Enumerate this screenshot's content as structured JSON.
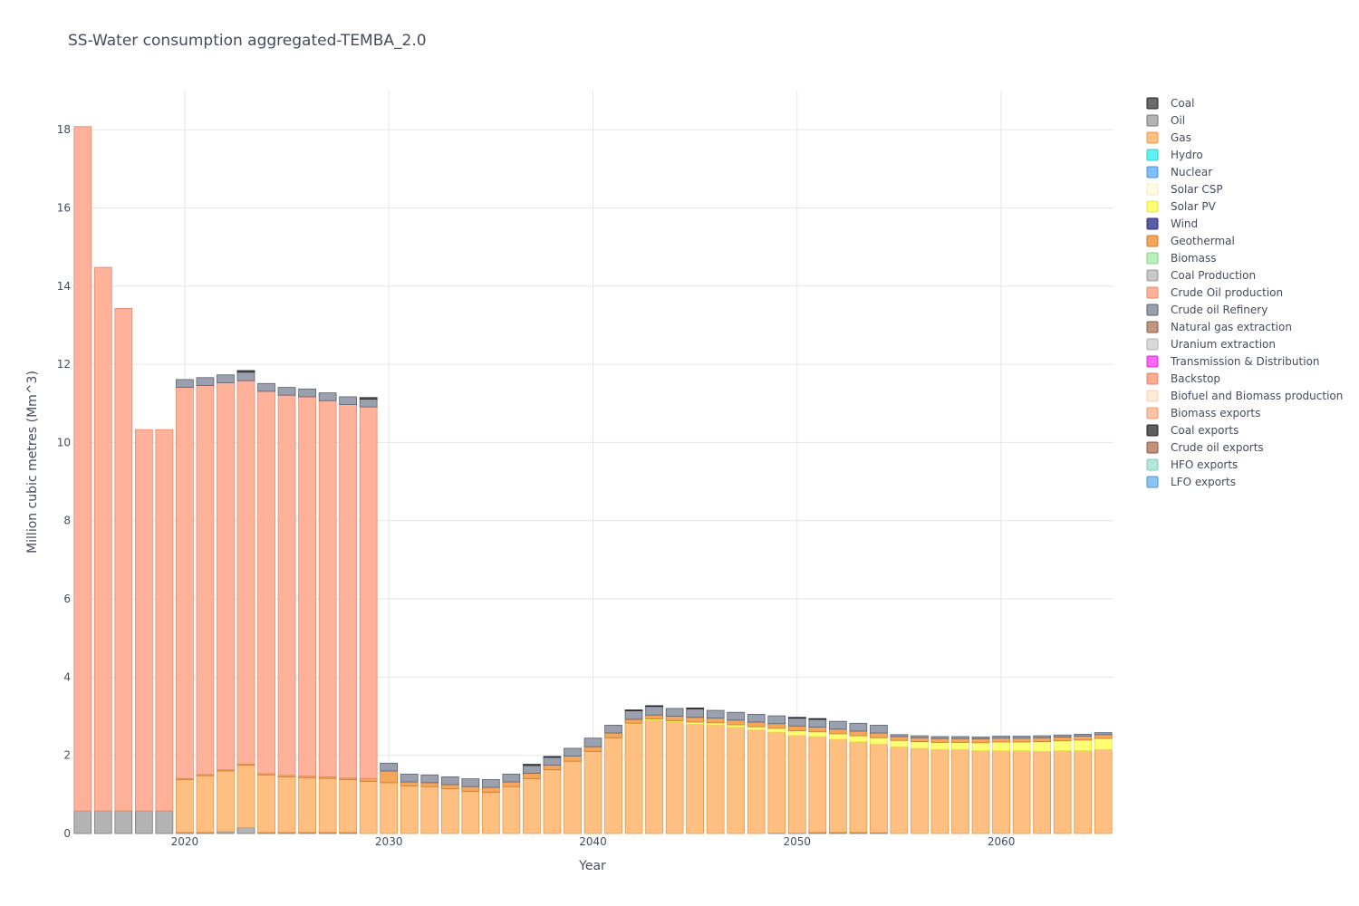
{
  "chart_data": {
    "type": "bar",
    "stacked": true,
    "title": "SS-Water consumption aggregated-TEMBA_2.0",
    "xlabel": "Year",
    "ylabel": "Million cubic metres (Mm^3)",
    "xlim": [
      2014.5,
      2065.5
    ],
    "ylim": [
      0,
      19
    ],
    "x_ticks": [
      2020,
      2030,
      2040,
      2050,
      2060
    ],
    "y_ticks": [
      0,
      2,
      4,
      6,
      8,
      10,
      12,
      14,
      16,
      18
    ],
    "grid": true,
    "legend_position": "right",
    "legend": [
      {
        "name": "Coal",
        "color": "#6b6b6b",
        "edge": "#222222"
      },
      {
        "name": "Oil",
        "color": "#b3b3b3",
        "edge": "#777777"
      },
      {
        "name": "Gas",
        "color": "#ffbf80",
        "edge": "#e8964a"
      },
      {
        "name": "Hydro",
        "color": "#5cf2f2",
        "edge": "#33cccc"
      },
      {
        "name": "Nuclear",
        "color": "#80bfff",
        "edge": "#4d94db"
      },
      {
        "name": "Solar CSP",
        "color": "#fdfbe3",
        "edge": "#f0ecc0"
      },
      {
        "name": "Solar PV",
        "color": "#ffff73",
        "edge": "#e6e64d"
      },
      {
        "name": "Wind",
        "color": "#5b5ba8",
        "edge": "#2e2e80"
      },
      {
        "name": "Geothermal",
        "color": "#f5a65a",
        "edge": "#cc7a2e"
      },
      {
        "name": "Biomass",
        "color": "#b8f2b8",
        "edge": "#8ccc8c"
      },
      {
        "name": "Coal Production",
        "color": "#c7c7c7",
        "edge": "#999999"
      },
      {
        "name": "Crude Oil production",
        "color": "#ffb299",
        "edge": "#e68a6b"
      },
      {
        "name": "Crude oil Refinery",
        "color": "#9aa0ad",
        "edge": "#5c6170"
      },
      {
        "name": "Natural gas extraction",
        "color": "#c49580",
        "edge": "#8c5a45"
      },
      {
        "name": "Uranium extraction",
        "color": "#d9d9d9",
        "edge": "#b0b0b0"
      },
      {
        "name": "Transmission & Distribution",
        "color": "#ff66ff",
        "edge": "#cc33cc"
      },
      {
        "name": "Backstop",
        "color": "#ffab91",
        "edge": "#e6806b"
      },
      {
        "name": "Biofuel and Biomass production",
        "color": "#fdebd6",
        "edge": "#f0d0b0"
      },
      {
        "name": "Biomass exports",
        "color": "#ffc2a3",
        "edge": "#eb9a75"
      },
      {
        "name": "Coal exports",
        "color": "#5e5e5e",
        "edge": "#222222"
      },
      {
        "name": "Crude oil exports",
        "color": "#c4907a",
        "edge": "#8c5a45"
      },
      {
        "name": "HFO exports",
        "color": "#b3e6d9",
        "edge": "#80ccb8"
      },
      {
        "name": "LFO exports",
        "color": "#8cc4f2",
        "edge": "#4d94db"
      }
    ],
    "x": [
      2015,
      2016,
      2017,
      2018,
      2019,
      2020,
      2021,
      2022,
      2023,
      2024,
      2025,
      2026,
      2027,
      2028,
      2029,
      2030,
      2031,
      2032,
      2033,
      2034,
      2035,
      2036,
      2037,
      2038,
      2039,
      2040,
      2041,
      2042,
      2043,
      2044,
      2045,
      2046,
      2047,
      2048,
      2049,
      2050,
      2051,
      2052,
      2053,
      2054,
      2055,
      2056,
      2057,
      2058,
      2059,
      2060,
      2061,
      2062,
      2063,
      2064,
      2065
    ],
    "series": [
      {
        "name": "Oil",
        "values": [
          0.58,
          0.58,
          0.58,
          0.58,
          0.58,
          0.03,
          0.03,
          0.05,
          0.15,
          0.03,
          0.03,
          0.03,
          0.03,
          0.03,
          0,
          0,
          0,
          0,
          0,
          0,
          0,
          0,
          0,
          0,
          0,
          0,
          0,
          0,
          0,
          0,
          0,
          0,
          0,
          0,
          0.01,
          0.01,
          0.03,
          0.03,
          0.03,
          0.02,
          0,
          0,
          0,
          0,
          0,
          0,
          0,
          0,
          0,
          0,
          0
        ]
      },
      {
        "name": "Gas",
        "values": [
          0,
          0,
          0,
          0,
          0,
          1.35,
          1.45,
          1.55,
          1.6,
          1.47,
          1.42,
          1.4,
          1.38,
          1.35,
          1.33,
          1.3,
          1.22,
          1.2,
          1.15,
          1.08,
          1.05,
          1.2,
          1.4,
          1.63,
          1.85,
          2.1,
          2.45,
          2.8,
          2.9,
          2.85,
          2.8,
          2.78,
          2.72,
          2.65,
          2.58,
          2.5,
          2.45,
          2.38,
          2.32,
          2.27,
          2.22,
          2.18,
          2.15,
          2.15,
          2.12,
          2.12,
          2.12,
          2.1,
          2.12,
          2.12,
          2.15
        ]
      },
      {
        "name": "Solar PV",
        "values": [
          0,
          0,
          0,
          0,
          0,
          0,
          0,
          0,
          0,
          0,
          0,
          0,
          0,
          0,
          0,
          0,
          0,
          0,
          0,
          0,
          0,
          0,
          0,
          0,
          0,
          0,
          0,
          0.02,
          0.03,
          0.03,
          0.05,
          0.05,
          0.06,
          0.08,
          0.1,
          0.12,
          0.12,
          0.14,
          0.15,
          0.16,
          0.16,
          0.17,
          0.18,
          0.18,
          0.2,
          0.22,
          0.22,
          0.25,
          0.25,
          0.27,
          0.28
        ]
      },
      {
        "name": "Geothermal",
        "values": [
          0,
          0,
          0,
          0,
          0,
          0.03,
          0.03,
          0.03,
          0.03,
          0.03,
          0.04,
          0.04,
          0.04,
          0.04,
          0.08,
          0.3,
          0.1,
          0.1,
          0.1,
          0.12,
          0.13,
          0.12,
          0.14,
          0.12,
          0.13,
          0.12,
          0.12,
          0.1,
          0.1,
          0.12,
          0.12,
          0.12,
          0.12,
          0.12,
          0.12,
          0.12,
          0.12,
          0.12,
          0.12,
          0.12,
          0.1,
          0.1,
          0.1,
          0.1,
          0.1,
          0.1,
          0.1,
          0.1,
          0.1,
          0.1,
          0.1
        ]
      },
      {
        "name": "Crude Oil production",
        "values": [
          17.5,
          13.9,
          12.85,
          9.75,
          9.75,
          10.0,
          9.95,
          9.9,
          9.8,
          9.78,
          9.72,
          9.7,
          9.62,
          9.55,
          9.5,
          0,
          0,
          0,
          0,
          0,
          0,
          0,
          0,
          0,
          0,
          0,
          0,
          0,
          0,
          0,
          0,
          0,
          0,
          0,
          0,
          0,
          0,
          0,
          0,
          0,
          0,
          0,
          0,
          0,
          0,
          0,
          0,
          0,
          0,
          0,
          0
        ]
      },
      {
        "name": "Crude oil Refinery",
        "values": [
          0,
          0,
          0,
          0,
          0,
          0.2,
          0.2,
          0.2,
          0.22,
          0.2,
          0.2,
          0.2,
          0.2,
          0.2,
          0.2,
          0.2,
          0.2,
          0.2,
          0.2,
          0.2,
          0.2,
          0.2,
          0.2,
          0.2,
          0.2,
          0.22,
          0.2,
          0.22,
          0.22,
          0.2,
          0.22,
          0.2,
          0.2,
          0.2,
          0.2,
          0.2,
          0.2,
          0.2,
          0.2,
          0.2,
          0.05,
          0.05,
          0.05,
          0.05,
          0.05,
          0.05,
          0.05,
          0.05,
          0.05,
          0.05,
          0.05
        ]
      },
      {
        "name": "Coal exports",
        "values": [
          0,
          0,
          0,
          0,
          0,
          0,
          0,
          0,
          0.04,
          0,
          0,
          0,
          0,
          0,
          0.04,
          0,
          0,
          0,
          0,
          0,
          0,
          0,
          0.03,
          0.02,
          0,
          0,
          0,
          0.02,
          0.02,
          0,
          0.02,
          0,
          0,
          0,
          0,
          0.02,
          0.02,
          0,
          0,
          0,
          0,
          0,
          0,
          0,
          0,
          0,
          0,
          0,
          0,
          0,
          0
        ]
      }
    ]
  }
}
